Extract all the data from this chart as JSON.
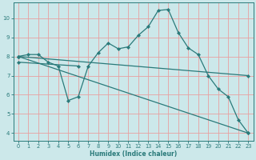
{
  "xlabel": "Humidex (Indice chaleur)",
  "background_color": "#cce8ea",
  "grid_color": "#e8a0a0",
  "line_color": "#2a7a7a",
  "xlim": [
    -0.5,
    23.5
  ],
  "ylim": [
    3.6,
    10.8
  ],
  "yticks": [
    4,
    5,
    6,
    7,
    8,
    9,
    10
  ],
  "xticks": [
    0,
    1,
    2,
    3,
    4,
    5,
    6,
    7,
    8,
    9,
    10,
    11,
    12,
    13,
    14,
    15,
    16,
    17,
    18,
    19,
    20,
    21,
    22,
    23
  ],
  "main_line": {
    "x": [
      0,
      1,
      2,
      3,
      4,
      5,
      6,
      7,
      8,
      9,
      10,
      11,
      12,
      13,
      14,
      15,
      16,
      17,
      18,
      19,
      20,
      21,
      22,
      23
    ],
    "y": [
      8.0,
      8.1,
      8.1,
      7.7,
      7.5,
      5.7,
      5.9,
      7.5,
      8.2,
      8.7,
      8.4,
      8.5,
      9.1,
      9.55,
      10.4,
      10.45,
      9.25,
      8.45,
      8.1,
      7.0,
      6.3,
      5.9,
      4.7,
      4.0
    ]
  },
  "trend_lines": [
    {
      "x": [
        0,
        23
      ],
      "y": [
        8.0,
        7.0
      ]
    },
    {
      "x": [
        0,
        23
      ],
      "y": [
        8.0,
        4.0
      ]
    },
    {
      "x": [
        0,
        6
      ],
      "y": [
        7.7,
        7.5
      ]
    }
  ]
}
